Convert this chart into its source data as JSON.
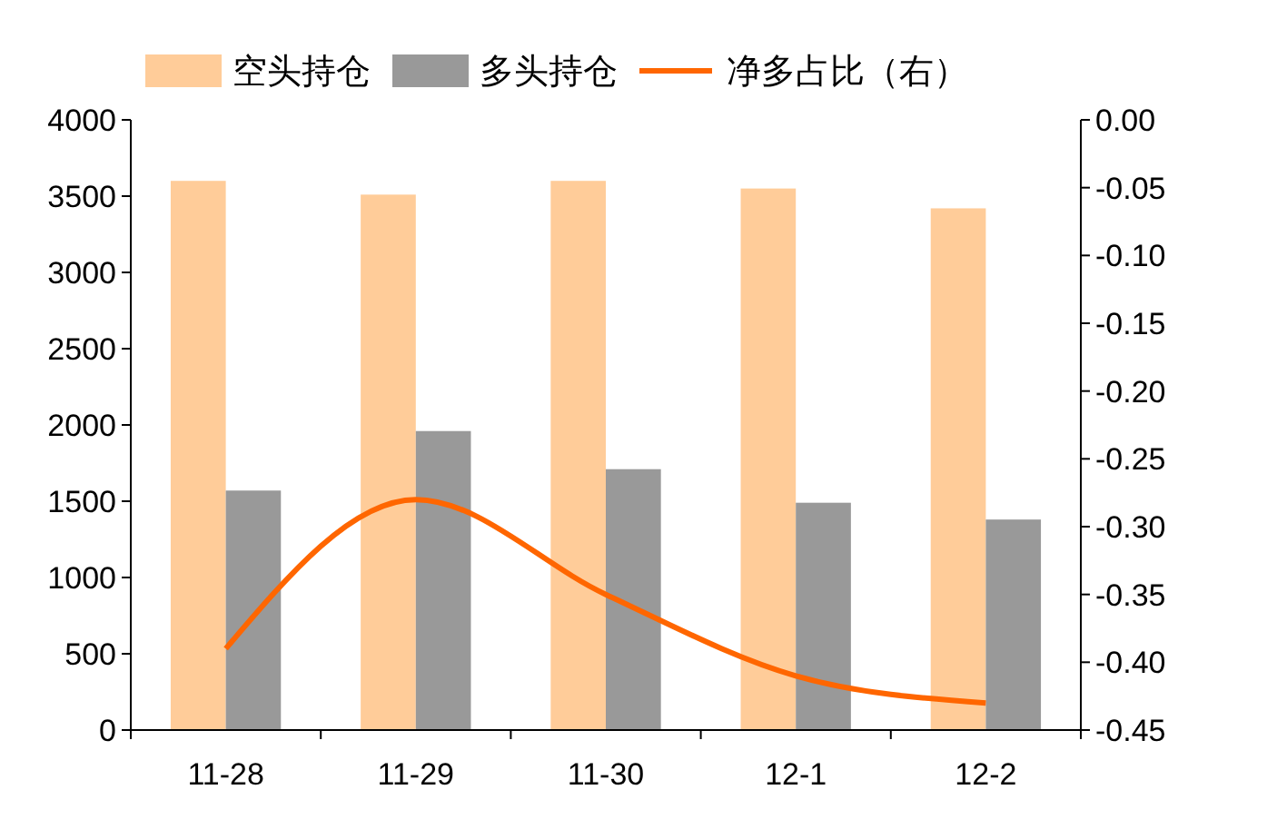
{
  "chart_data": {
    "type": "bar",
    "categories": [
      "11-28",
      "11-29",
      "11-30",
      "12-1",
      "12-2"
    ],
    "series": [
      {
        "name": "空头持仓",
        "color": "#ffcc99",
        "values": [
          3600,
          3510,
          3600,
          3550,
          3420
        ]
      },
      {
        "name": "多头持仓",
        "color": "#999999",
        "values": [
          1570,
          1960,
          1710,
          1490,
          1380
        ]
      },
      {
        "name": "净多占比（右）",
        "type": "line",
        "axis": "y2",
        "color": "#ff6600",
        "values": [
          -0.39,
          -0.28,
          -0.35,
          -0.41,
          -0.43
        ]
      }
    ],
    "ylim": [
      0,
      4000
    ],
    "yticks": [
      0,
      500,
      1000,
      1500,
      2000,
      2500,
      3000,
      3500,
      4000
    ],
    "y2lim": [
      -0.45,
      0
    ],
    "y2ticks": [
      {
        "value": -0.45,
        "label": "-0.45"
      },
      {
        "value": -0.4,
        "label": "-0.40"
      },
      {
        "value": -0.35,
        "label": "-0.35"
      },
      {
        "value": -0.3,
        "label": "-0.30"
      },
      {
        "value": -0.25,
        "label": "-0.25"
      },
      {
        "value": -0.2,
        "label": "-0.20"
      },
      {
        "value": -0.15,
        "label": "-0.15"
      },
      {
        "value": -0.1,
        "label": "-0.10"
      },
      {
        "value": -0.05,
        "label": "-0.05"
      },
      {
        "value": 0,
        "label": "0.00"
      }
    ],
    "legend": "top",
    "grid": false,
    "marker": "none"
  }
}
